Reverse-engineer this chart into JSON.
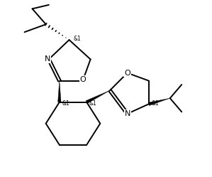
{
  "background_color": "#ffffff",
  "line_color": "#000000",
  "line_width": 1.4,
  "font_size_atom": 8.0,
  "font_size_stereo": 5.5,
  "figsize": [
    2.99,
    2.49
  ],
  "dpi": 100,
  "xlim": [
    -0.5,
    9.5
  ],
  "ylim": [
    -0.5,
    8.5
  ]
}
